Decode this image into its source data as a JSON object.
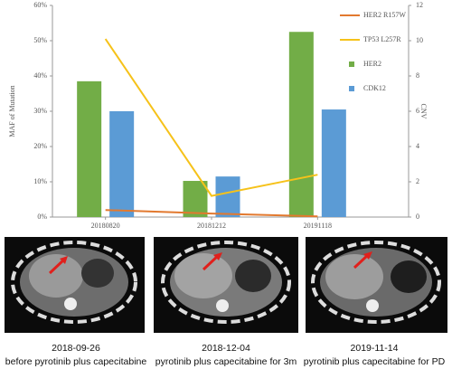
{
  "chart_data": {
    "type": "bar",
    "categories": [
      "20180820",
      "20181212",
      "20191118"
    ],
    "y_label": "MAF of Mutation",
    "y2_label": "CNV",
    "ylim": [
      0,
      60
    ],
    "yticks": [
      {
        "value": 0,
        "label": "0%"
      },
      {
        "value": 10,
        "label": "10%"
      },
      {
        "value": 20,
        "label": "20%"
      },
      {
        "value": 30,
        "label": "30%"
      },
      {
        "value": 40,
        "label": "40%"
      },
      {
        "value": 50,
        "label": "50%"
      },
      {
        "value": 60,
        "label": "60%"
      }
    ],
    "y2lim": [
      0,
      12
    ],
    "y2ticks": [
      0,
      2,
      4,
      6,
      8,
      10,
      12
    ],
    "series": [
      {
        "name": "HER2 R157W",
        "type": "line",
        "color": "#e2792f",
        "values": [
          2,
          1,
          0.2
        ]
      },
      {
        "name": "TP53 L257R",
        "type": "line",
        "color": "#f6c21a",
        "values": [
          50.5,
          6,
          12
        ]
      },
      {
        "name": "HER2",
        "type": "bar",
        "axis": "y2",
        "color": "#72ad47",
        "values": [
          7.7,
          2.05,
          10.5
        ]
      },
      {
        "name": "CDK12",
        "type": "bar",
        "axis": "y2",
        "color": "#5b9bd5",
        "values": [
          6.0,
          2.3,
          6.1
        ]
      }
    ]
  },
  "panels": [
    {
      "date": "2018-09-26",
      "caption": "before  pyrotinib plus capecitabine"
    },
    {
      "date": "2018-12-04",
      "caption": "pyrotinib plus capecitabine for 3m"
    },
    {
      "date": "2019-11-14",
      "caption": "pyrotinib plus capecitabine for PD"
    }
  ]
}
